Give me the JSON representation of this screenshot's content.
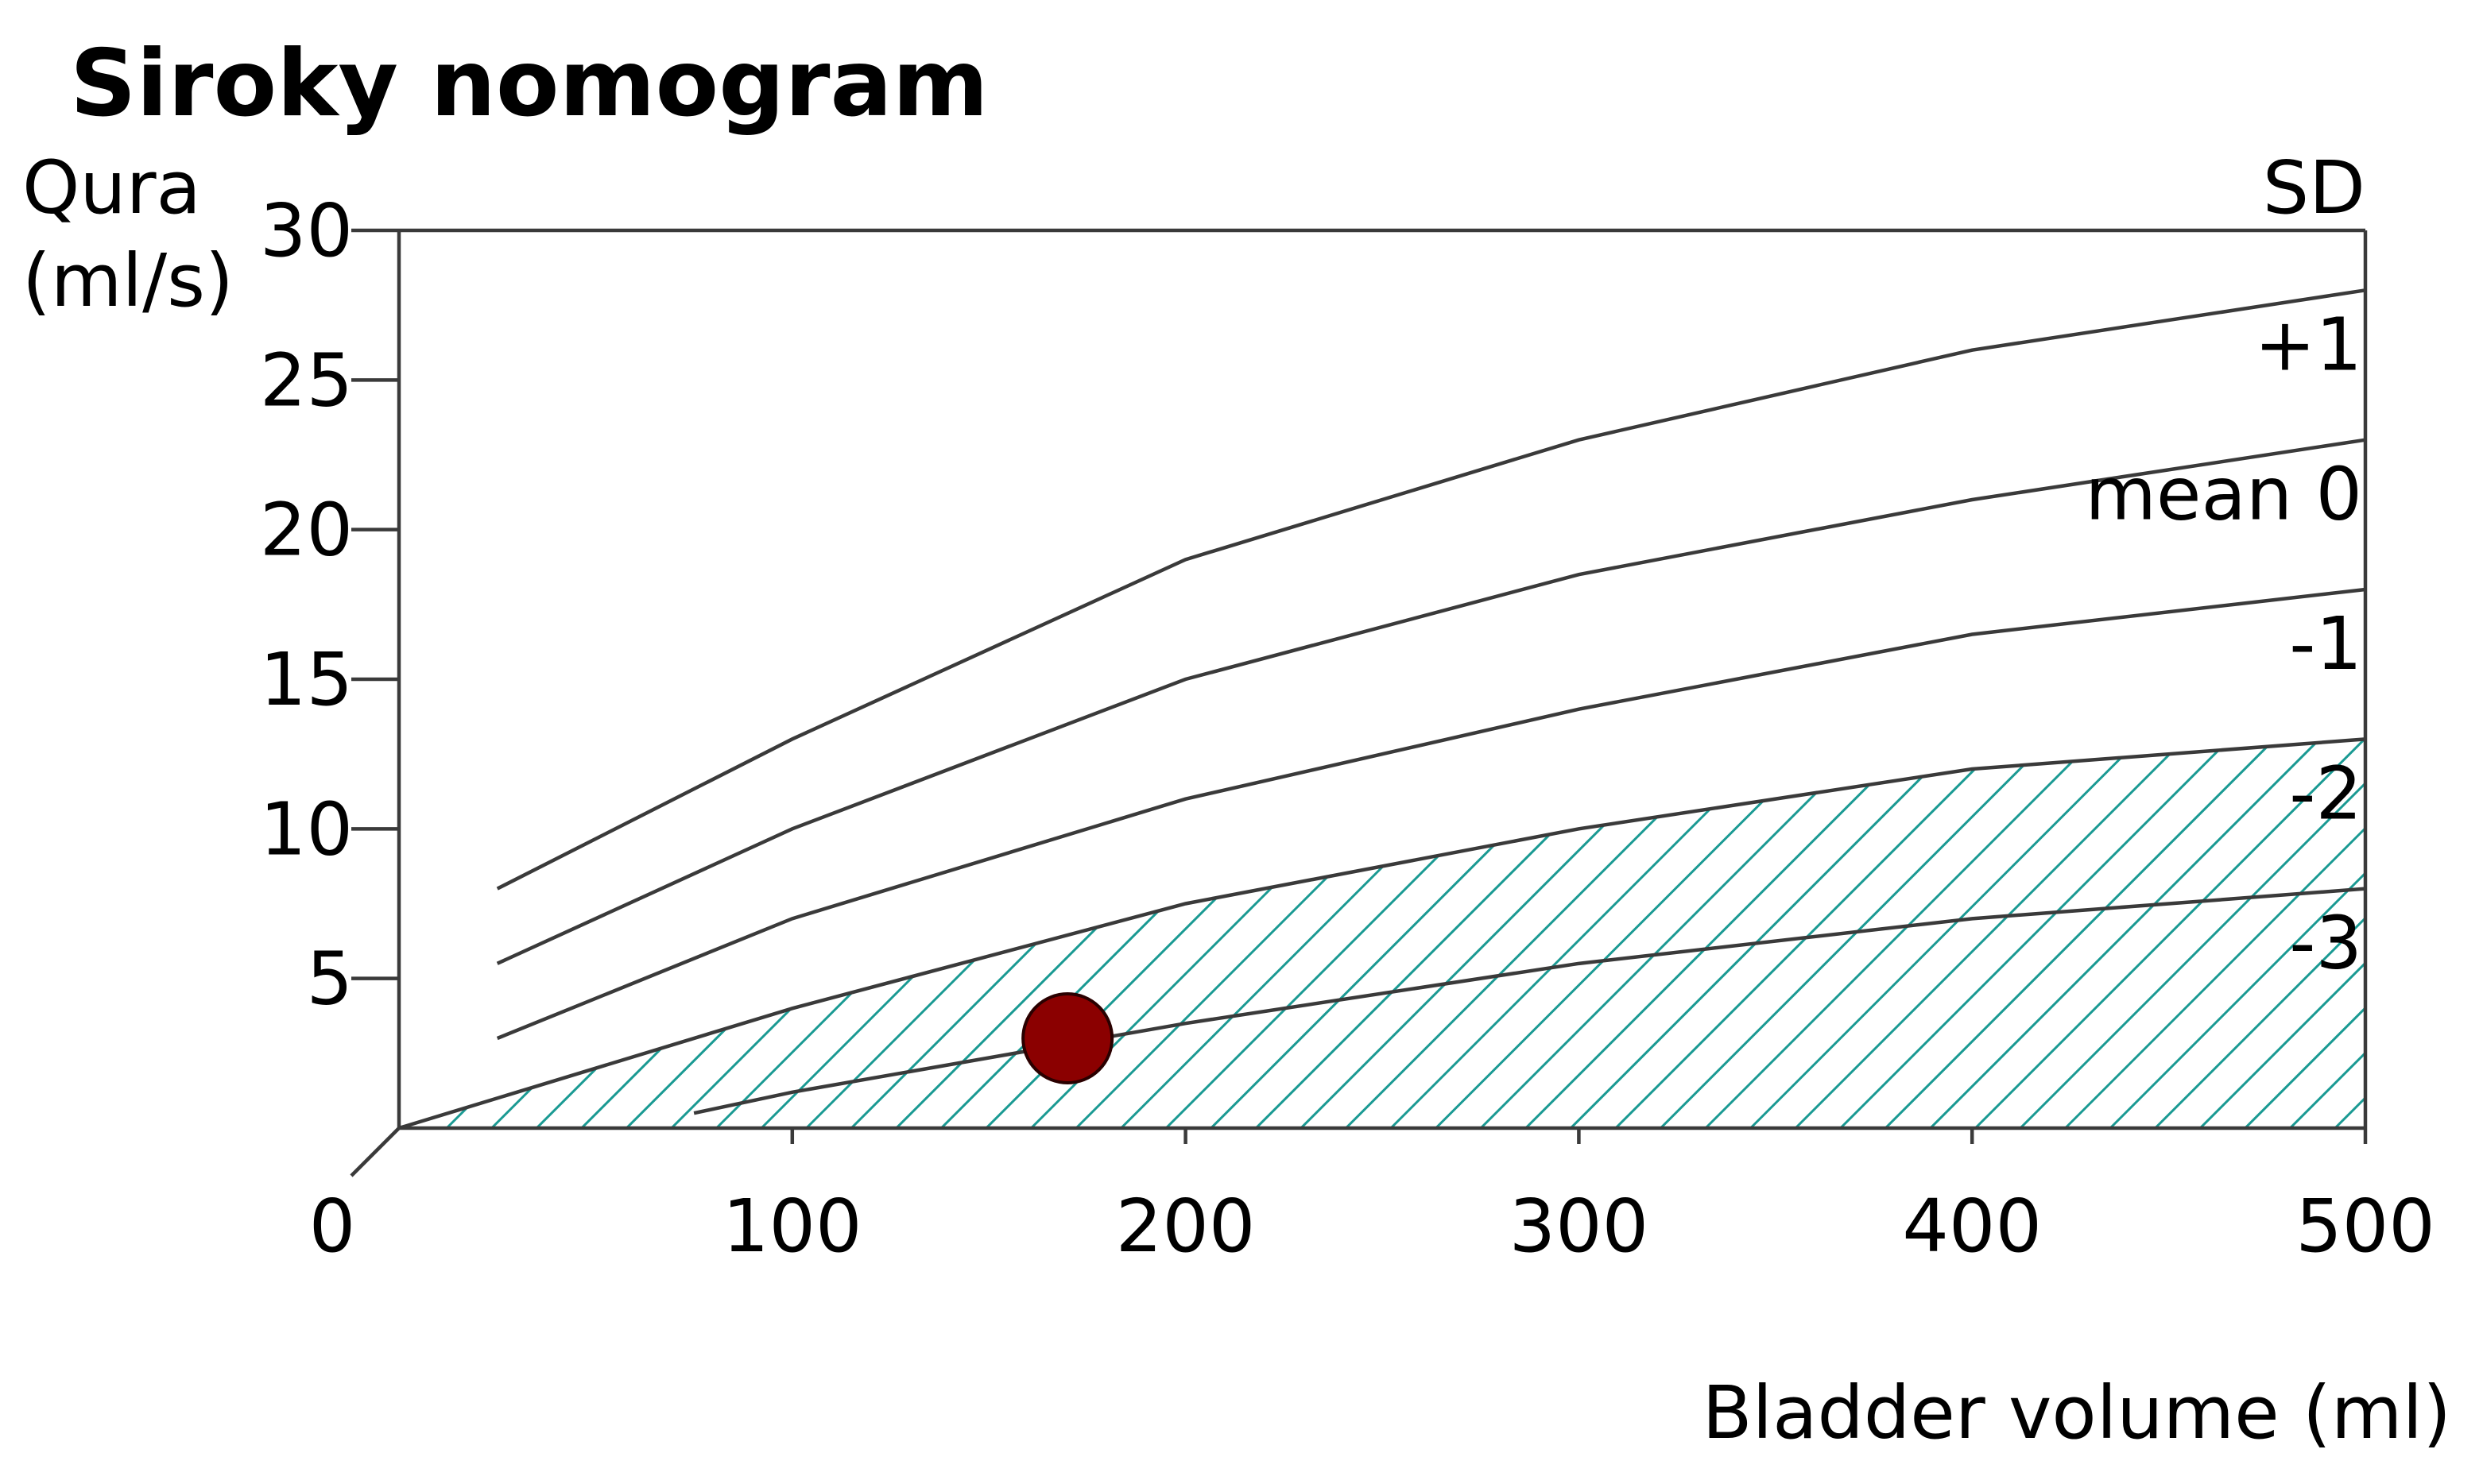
{
  "chart_data": {
    "type": "line",
    "title": "Siroky nomogram",
    "ylabel_line1": "Qura",
    "ylabel_line2": "(ml/s)",
    "xlabel": "Bladder volume (ml)",
    "xlim": [
      0,
      500
    ],
    "ylim": [
      0,
      30
    ],
    "x_ticks": [
      "0",
      "100",
      "200",
      "300",
      "400",
      "500"
    ],
    "y_ticks": [
      "5",
      "10",
      "15",
      "20",
      "25",
      "30"
    ],
    "legend_header": "SD",
    "grid": false,
    "series": [
      {
        "name": "+1",
        "x": [
          25,
          100,
          200,
          300,
          400,
          500
        ],
        "y": [
          8,
          13,
          19,
          23,
          26,
          28
        ]
      },
      {
        "name": "mean 0",
        "x": [
          25,
          100,
          200,
          300,
          400,
          500
        ],
        "y": [
          5.5,
          10,
          15,
          18.5,
          21,
          23
        ]
      },
      {
        "name": "-1",
        "x": [
          25,
          100,
          200,
          300,
          400,
          500
        ],
        "y": [
          3,
          7,
          11,
          14,
          16.5,
          18
        ]
      },
      {
        "name": "-2",
        "x": [
          0,
          100,
          200,
          300,
          400,
          500
        ],
        "y": [
          0,
          4,
          7.5,
          10,
          12,
          13
        ]
      },
      {
        "name": "-3",
        "x": [
          75,
          100,
          200,
          300,
          400,
          500
        ],
        "y": [
          0.5,
          1.2,
          3.5,
          5.5,
          7,
          8
        ]
      }
    ],
    "shaded_region": {
      "description_color": "#1a9a93",
      "pattern": "diagonal hatch",
      "upper_series": "-2",
      "lower_bound": 0
    },
    "marker_point": {
      "x": 170,
      "y": 3,
      "color": "#8b0000"
    },
    "colors": {
      "curve": "#3a3a3a",
      "hatch": "#1a9a93",
      "marker_fill": "#8b0000",
      "marker_stroke": "#2a0000"
    }
  }
}
